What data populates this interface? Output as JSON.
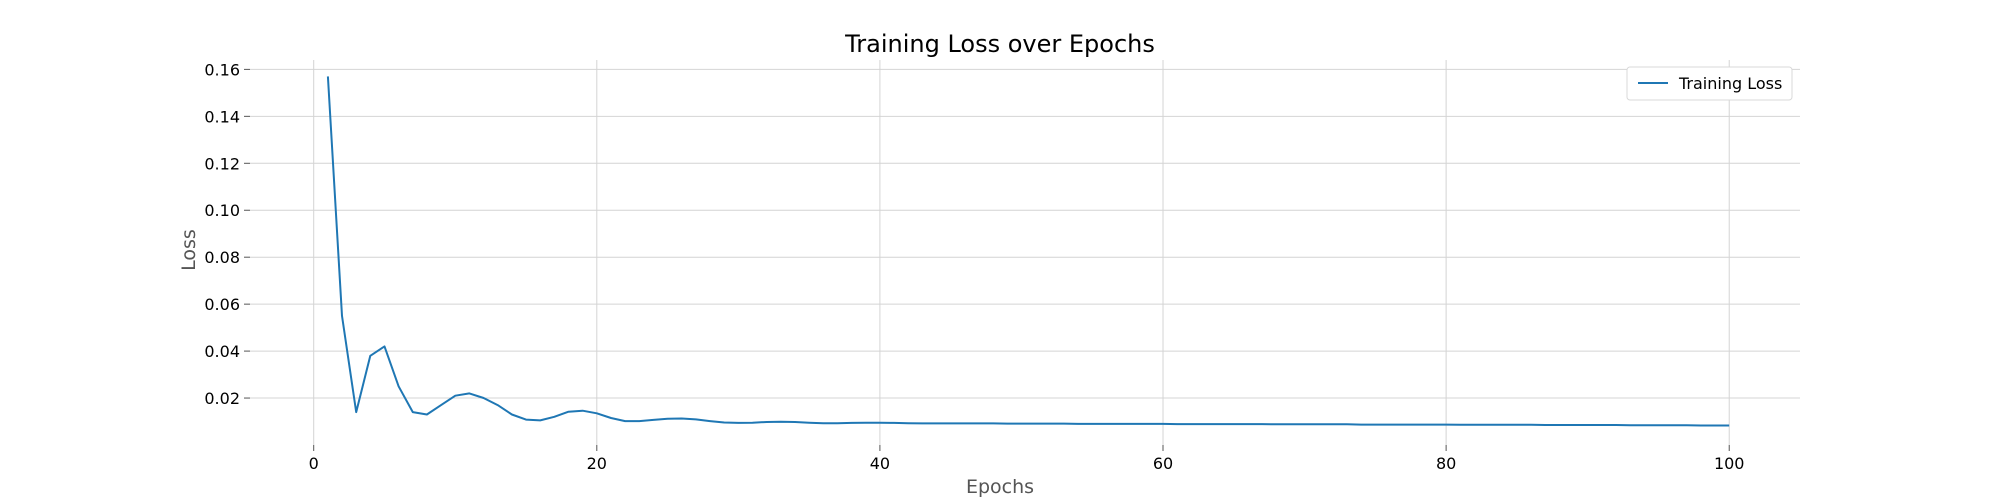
{
  "chart_data": {
    "type": "line",
    "title": "Training Loss over Epochs",
    "xlabel": "Epochs",
    "ylabel": "Loss",
    "xlim": [
      -4.5,
      105
    ],
    "ylim": [
      0.0,
      0.164
    ],
    "xticks": [
      0,
      20,
      40,
      60,
      80,
      100
    ],
    "yticks": [
      0.02,
      0.04,
      0.06,
      0.08,
      0.1,
      0.12,
      0.14,
      0.16
    ],
    "ytick_labels": [
      "0.02",
      "0.04",
      "0.06",
      "0.08",
      "0.10",
      "0.12",
      "0.14",
      "0.16"
    ],
    "grid": true,
    "legend_position": "top-right",
    "series": [
      {
        "name": "Training Loss",
        "color": "#1f77b4",
        "x": [
          1,
          2,
          3,
          4,
          5,
          6,
          7,
          8,
          9,
          10,
          11,
          12,
          13,
          14,
          15,
          16,
          17,
          18,
          19,
          20,
          21,
          22,
          23,
          24,
          25,
          26,
          27,
          28,
          29,
          30,
          31,
          32,
          33,
          34,
          35,
          36,
          37,
          38,
          39,
          40,
          41,
          42,
          43,
          44,
          45,
          46,
          47,
          48,
          49,
          50,
          51,
          52,
          53,
          54,
          55,
          56,
          57,
          58,
          59,
          60,
          61,
          62,
          63,
          64,
          65,
          66,
          67,
          68,
          69,
          70,
          71,
          72,
          73,
          74,
          75,
          76,
          77,
          78,
          79,
          80,
          81,
          82,
          83,
          84,
          85,
          86,
          87,
          88,
          89,
          90,
          91,
          92,
          93,
          94,
          95,
          96,
          97,
          98,
          99,
          100
        ],
        "y": [
          0.157,
          0.055,
          0.014,
          0.038,
          0.042,
          0.025,
          0.014,
          0.013,
          0.017,
          0.021,
          0.022,
          0.02,
          0.017,
          0.013,
          0.0108,
          0.0105,
          0.012,
          0.0142,
          0.0146,
          0.0135,
          0.0115,
          0.0102,
          0.0102,
          0.0107,
          0.0112,
          0.0113,
          0.0109,
          0.0102,
          0.0096,
          0.0094,
          0.0095,
          0.0098,
          0.0099,
          0.0098,
          0.0095,
          0.0093,
          0.0093,
          0.0094,
          0.0095,
          0.0095,
          0.0094,
          0.0093,
          0.0092,
          0.0092,
          0.0092,
          0.0092,
          0.0092,
          0.0092,
          0.0091,
          0.0091,
          0.0091,
          0.0091,
          0.0091,
          0.009,
          0.009,
          0.009,
          0.009,
          0.009,
          0.009,
          0.009,
          0.0089,
          0.0089,
          0.0089,
          0.0089,
          0.0089,
          0.0089,
          0.0089,
          0.0088,
          0.0088,
          0.0088,
          0.0088,
          0.0088,
          0.0088,
          0.0087,
          0.0087,
          0.0087,
          0.0087,
          0.0087,
          0.0087,
          0.0087,
          0.0086,
          0.0086,
          0.0086,
          0.0086,
          0.0086,
          0.0086,
          0.0085,
          0.0085,
          0.0085,
          0.0085,
          0.0085,
          0.0085,
          0.0084,
          0.0084,
          0.0084,
          0.0084,
          0.0084,
          0.0083,
          0.0083,
          0.0083
        ]
      }
    ]
  }
}
